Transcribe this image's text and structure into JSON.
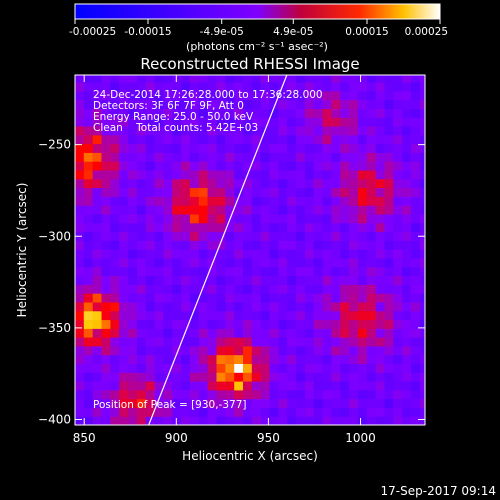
{
  "chart_data": {
    "type": "heatmap",
    "title": "Reconstructed RHESSI Image",
    "xlabel": "Heliocentric X (arcsec)",
    "ylabel": "Heliocentric Y (arcsec)",
    "xlim": [
      845,
      1035
    ],
    "ylim": [
      -403,
      -212
    ],
    "x_ticks": [
      850,
      900,
      950,
      1000
    ],
    "y_ticks": [
      -400,
      -350,
      -300,
      -250
    ],
    "colorbar": {
      "range": [
        -0.00025,
        0.00025
      ],
      "ticks": [
        "-0.00025",
        "-0.00015",
        "-4.9e-05",
        "4.9e-05",
        "0.00015",
        "0.00025"
      ],
      "tick_values": [
        -0.00025,
        -0.00015,
        -4.9e-05,
        4.9e-05,
        0.00015,
        0.00025
      ],
      "unit_label": "(photons cm⁻² s⁻¹ asec⁻²)"
    },
    "info_lines": [
      "24-Dec-2014 17:26:28.000 to 17:36:28.000",
      "Detectors: 3F 6F 7F 9F, Att 0",
      "Energy Range: 25.0 - 50.0 keV",
      "Clean    Total counts: 5.42E+03"
    ],
    "peak_label": "Position of Peak = [930,-377]",
    "peak": {
      "x": 930,
      "y": -377
    },
    "limb_line": {
      "x1": 885,
      "y1": -403,
      "x2": 960,
      "y2": -212
    },
    "sources": [
      {
        "x": 932,
        "y": -372,
        "amp": 1.0,
        "sigma": 11
      },
      {
        "x": 855,
        "y": -345,
        "amp": 0.95,
        "sigma": 11
      },
      {
        "x": 850,
        "y": -258,
        "amp": 0.75,
        "sigma": 13
      },
      {
        "x": 912,
        "y": -282,
        "amp": 0.7,
        "sigma": 12
      },
      {
        "x": 878,
        "y": -390,
        "amp": 0.6,
        "sigma": 10
      },
      {
        "x": 1005,
        "y": -275,
        "amp": 0.55,
        "sigma": 12
      },
      {
        "x": 1000,
        "y": -345,
        "amp": 0.55,
        "sigma": 13
      },
      {
        "x": 985,
        "y": -235,
        "amp": 0.4,
        "sigma": 10
      }
    ],
    "colors": {
      "negative_min": "#0000ff",
      "zero": "#7f00ff",
      "positive_mid": "#ff0000",
      "positive_max": "#ffffff",
      "limb_line": "#ffffff"
    }
  },
  "footer": {
    "timestamp": "17-Sep-2017 09:14"
  }
}
